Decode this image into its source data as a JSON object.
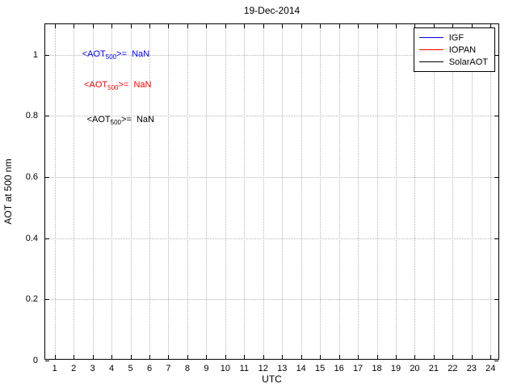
{
  "title": "19-Dec-2014",
  "chart_data": {
    "type": "line",
    "title": "19-Dec-2014",
    "xlabel": "UTC",
    "ylabel": "AOT at 500 nm",
    "xlim": [
      0.5,
      24.5
    ],
    "ylim": [
      0,
      1.1
    ],
    "xticks": [
      1,
      2,
      3,
      4,
      5,
      6,
      7,
      8,
      9,
      10,
      11,
      12,
      13,
      14,
      15,
      16,
      17,
      18,
      19,
      20,
      21,
      22,
      23,
      24
    ],
    "yticks": [
      0,
      0.2,
      0.4,
      0.6,
      0.8,
      1
    ],
    "ytick_labels": [
      "0",
      "0.2",
      "0.4",
      "0.6",
      "0.8",
      "1"
    ],
    "grid": true,
    "legend": {
      "position": "top-right",
      "entries": [
        {
          "label": "IGF",
          "color": "#0000ff"
        },
        {
          "label": "IOPAN",
          "color": "#ff0000"
        },
        {
          "label": "SolarAOT",
          "color": "#000000"
        }
      ]
    },
    "series": [
      {
        "name": "IGF",
        "color": "#0000ff",
        "x": [],
        "y": []
      },
      {
        "name": "IOPAN",
        "color": "#ff0000",
        "x": [],
        "y": []
      },
      {
        "name": "SolarAOT",
        "color": "#000000",
        "x": [],
        "y": []
      }
    ],
    "annotations": [
      {
        "pre": "<AOT",
        "sub": "500",
        "post": ">=  NaN",
        "color": "#0000ff",
        "x": 2.45,
        "y": 1.0
      },
      {
        "pre": "<AOT",
        "sub": "500",
        "post": ">=  NaN",
        "color": "#ff0000",
        "x": 2.55,
        "y": 0.9
      },
      {
        "pre": "<AOT",
        "sub": "500",
        "post": ">=  NaN",
        "color": "#000000",
        "x": 2.7,
        "y": 0.785
      }
    ]
  }
}
